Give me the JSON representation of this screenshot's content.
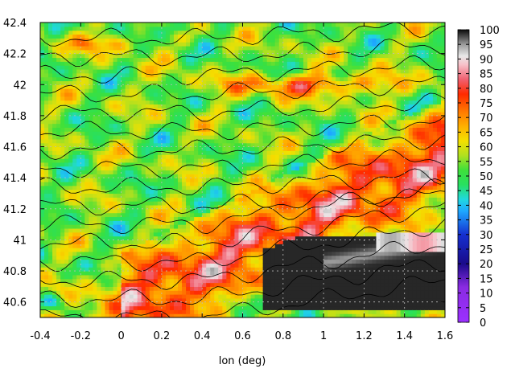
{
  "chart_data": {
    "type": "heatmap",
    "title": "",
    "xlabel": "lon (deg)",
    "ylabel": "",
    "xlim": [
      -0.4,
      1.6
    ],
    "ylim": [
      40.5,
      42.4
    ],
    "x_ticks": [
      "-0.4",
      "-0.2",
      "0",
      "0.2",
      "0.4",
      "0.6",
      "0.8",
      "1",
      "1.2",
      "1.4",
      "1.6"
    ],
    "y_ticks": [
      "40.6",
      "40.8",
      "41",
      "41.2",
      "41.4",
      "41.6",
      "41.8",
      "42",
      "42.2",
      "42.4"
    ],
    "colorbar": {
      "min": 0,
      "max": 100,
      "ticks": [
        "0",
        "5",
        "10",
        "15",
        "20",
        "25",
        "30",
        "35",
        "40",
        "45",
        "50",
        "55",
        "60",
        "65",
        "70",
        "75",
        "80",
        "85",
        "90",
        "95",
        "100"
      ],
      "stops": [
        {
          "v": 0,
          "c": "#9b30ff"
        },
        {
          "v": 12,
          "c": "#8a2be2"
        },
        {
          "v": 20,
          "c": "#1a0a8a"
        },
        {
          "v": 30,
          "c": "#1530d0"
        },
        {
          "v": 38,
          "c": "#1ea8ff"
        },
        {
          "v": 42,
          "c": "#20d8e0"
        },
        {
          "v": 47,
          "c": "#28e060"
        },
        {
          "v": 52,
          "c": "#3ee03a"
        },
        {
          "v": 57,
          "c": "#b0e020"
        },
        {
          "v": 62,
          "c": "#f4e000"
        },
        {
          "v": 67,
          "c": "#ffb000"
        },
        {
          "v": 72,
          "c": "#ff7a00"
        },
        {
          "v": 78,
          "c": "#ff2a00"
        },
        {
          "v": 83,
          "c": "#f06070"
        },
        {
          "v": 88,
          "c": "#f7c0c8"
        },
        {
          "v": 91,
          "c": "#e8e8e8"
        },
        {
          "v": 95,
          "c": "#9a9a9a"
        },
        {
          "v": 100,
          "c": "#0a0a0a"
        }
      ]
    },
    "grid": true,
    "contours": true
  }
}
